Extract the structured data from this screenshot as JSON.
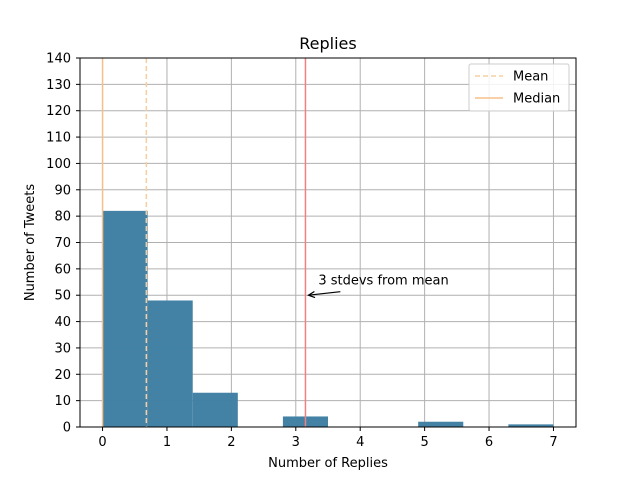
{
  "chart_data": {
    "type": "bar",
    "title": "Replies",
    "xlabel": "Number of Replies",
    "ylabel": "Number of Tweets",
    "xlim": [
      -0.35,
      7.35
    ],
    "ylim": [
      0,
      140
    ],
    "xticks": [
      0,
      1,
      2,
      3,
      4,
      5,
      6,
      7
    ],
    "yticks": [
      0,
      10,
      20,
      30,
      40,
      50,
      60,
      70,
      80,
      90,
      100,
      110,
      120,
      130,
      140
    ],
    "grid": true,
    "legend_position": "top-right",
    "bins": [
      {
        "x0": 0.0,
        "x1": 0.7,
        "count": 82
      },
      {
        "x0": 0.7,
        "x1": 1.4,
        "count": 48
      },
      {
        "x0": 1.4,
        "x1": 2.1,
        "count": 13
      },
      {
        "x0": 2.1,
        "x1": 2.8,
        "count": 0
      },
      {
        "x0": 2.8,
        "x1": 3.5,
        "count": 4
      },
      {
        "x0": 3.5,
        "x1": 4.2,
        "count": 0
      },
      {
        "x0": 4.2,
        "x1": 4.9,
        "count": 0
      },
      {
        "x0": 4.9,
        "x1": 5.6,
        "count": 2
      },
      {
        "x0": 5.6,
        "x1": 6.3,
        "count": 0
      },
      {
        "x0": 6.3,
        "x1": 7.0,
        "count": 1
      }
    ],
    "reference_lines": [
      {
        "name": "Mean",
        "x": 0.68,
        "style": "dashed",
        "color": "#f5cfa0"
      },
      {
        "name": "Median",
        "x": 0.0,
        "style": "solid",
        "color": "#f5c08a"
      },
      {
        "name": "",
        "x": 3.15,
        "style": "solid",
        "color": "#f08080"
      }
    ],
    "annotation": {
      "text": "3 stdevs from mean",
      "point": [
        3.15,
        50
      ],
      "text_pos": [
        3.35,
        54
      ]
    },
    "legend": [
      "Mean",
      "Median"
    ],
    "colors": {
      "bar": "#3f7fa3",
      "grid": "#b0b0b0"
    }
  }
}
